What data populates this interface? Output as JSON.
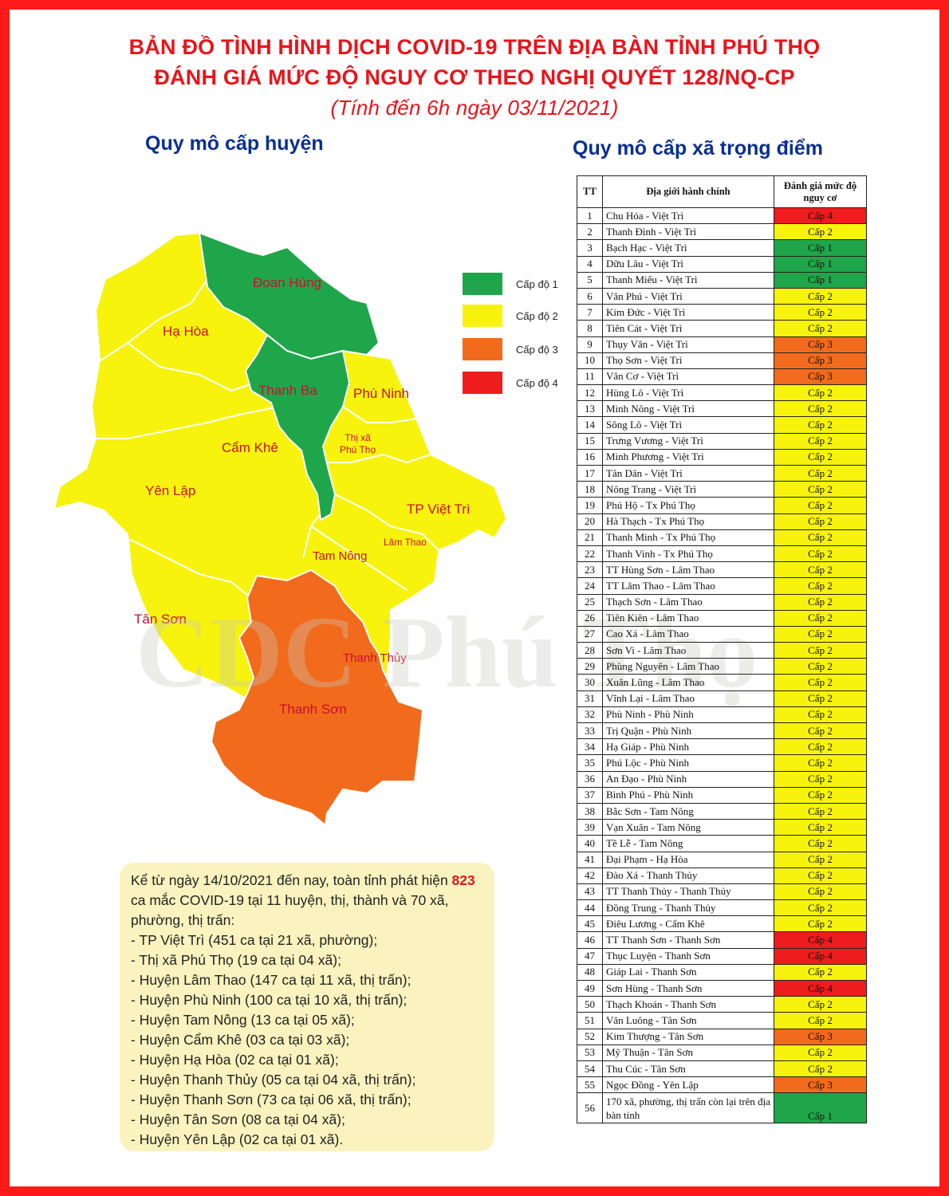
{
  "header": {
    "title_line1": "BẢN ĐỒ TÌNH HÌNH DỊCH COVID-19 TRÊN ĐỊA BÀN TỈNH PHÚ THỌ",
    "title_line2": "ĐÁNH GIÁ MỨC ĐỘ NGUY CƠ THEO NGHỊ QUYẾT 128/NQ-CP",
    "subtitle": "(Tính đến 6h ngày 03/11/2021)"
  },
  "colors": {
    "level1": "#1fa64a",
    "level2": "#f7f30c",
    "level3": "#f26a1b",
    "level4": "#ee1c1c",
    "frame": "#ff1a1a",
    "title": "#e8141b",
    "section_title": "#0a2f8f"
  },
  "map": {
    "section_title": "Quy mô cấp huyện",
    "districts": [
      {
        "name": "Đoan Hùng",
        "level": 1
      },
      {
        "name": "Hạ Hòa",
        "level": 2
      },
      {
        "name": "Thanh Ba",
        "level": 1
      },
      {
        "name": "Phù Ninh",
        "level": 2
      },
      {
        "name": "Cẩm Khê",
        "level": 2
      },
      {
        "name": "Thị xã\nPhú Thọ",
        "level": 2
      },
      {
        "name": "Yên Lập",
        "level": 2
      },
      {
        "name": "TP Việt Trì",
        "level": 2
      },
      {
        "name": "Lâm Thao",
        "level": 2
      },
      {
        "name": "Tam Nông",
        "level": 2
      },
      {
        "name": "Tân Sơn",
        "level": 2
      },
      {
        "name": "Thanh Thủy",
        "level": 2
      },
      {
        "name": "Thanh Sơn",
        "level": 3
      }
    ],
    "watermark": "CDC Phú Thọ",
    "legend": [
      "Cấp độ 1",
      "Cấp độ 2",
      "Cấp độ 3",
      "Cấp độ 4"
    ]
  },
  "summary": {
    "intro_pre": "Kể từ ngày 14/10/2021 đến nay, toàn tỉnh phát hiện ",
    "total": "823",
    "intro_post": " ca mắc COVID-19 tại 11 huyện, thị, thành và 70 xã, phường, thị trấn:",
    "items": [
      "- TP Việt Trì (451 ca tại 21 xã, phường);",
      "- Thị xã Phú Thọ (19 ca tại 04 xã);",
      "- Huyện Lâm Thao (147 ca tại 11 xã, thị trấn);",
      "- Huyện Phù Ninh (100 ca tại 10 xã, thị trấn);",
      "- Huyện Tam Nông (13 ca tại 05 xã);",
      "- Huyện Cẩm Khê (03 ca tại 03 xã);",
      "- Huyện Hạ Hòa (02 ca tại 01 xã);",
      "- Huyện Thanh Thủy (05 ca tại 04 xã, thị trấn);",
      "- Huyện Thanh Sơn (73 ca tại 06 xã, thị trấn);",
      "- Huyện Tân Sơn (08 ca tại 04 xã);",
      "- Huyện Yên Lập (02 ca tại 01 xã)."
    ]
  },
  "table": {
    "section_title": "Quy mô cấp xã trọng điểm",
    "headers": [
      "TT",
      "Địa giới hành chính",
      "Đánh giá mức độ nguy cơ"
    ],
    "rows": [
      [
        "1",
        "Chu Hóa - Việt Trì",
        "Cấp 4"
      ],
      [
        "2",
        "Thanh Đình - Việt Trì",
        "Cấp 2"
      ],
      [
        "3",
        "Bạch Hạc - Việt Trì",
        "Cấp 1"
      ],
      [
        "4",
        "Dữu Lâu - Việt Trì",
        "Cấp 1"
      ],
      [
        "5",
        "Thanh Miếu - Việt Trì",
        "Cấp 1"
      ],
      [
        "6",
        "Vân Phú - Việt Trì",
        "Cấp 2"
      ],
      [
        "7",
        "Kim Đức - Việt Trì",
        "Cấp 2"
      ],
      [
        "8",
        "Tiên Cát - Việt Trì",
        "Cấp 2"
      ],
      [
        "9",
        "Thụy Vân - Việt Trì",
        "Cấp 3"
      ],
      [
        "10",
        "Thọ Sơn - Việt Trì",
        "Cấp 3"
      ],
      [
        "11",
        "Vân Cơ - Việt Trì",
        "Cấp 3"
      ],
      [
        "12",
        "Hùng Lô - Việt Trì",
        "Cấp 2"
      ],
      [
        "13",
        "Minh Nông - Việt Trì",
        "Cấp 2"
      ],
      [
        "14",
        "Sông Lô - Việt Trì",
        "Cấp 2"
      ],
      [
        "15",
        "Trưng Vương - Việt Trì",
        "Cấp 2"
      ],
      [
        "16",
        "Minh Phương - Việt Trì",
        "Cấp 2"
      ],
      [
        "17",
        "Tân Dân - Việt Trì",
        "Cấp 2"
      ],
      [
        "18",
        "Nông Trang - Việt Trì",
        "Cấp 2"
      ],
      [
        "19",
        "Phú Hộ - Tx Phú Thọ",
        "Cấp 2"
      ],
      [
        "20",
        "Hà Thạch - Tx Phú Thọ",
        "Cấp 2"
      ],
      [
        "21",
        "Thanh Minh - Tx Phú Thọ",
        "Cấp 2"
      ],
      [
        "22",
        "Thanh Vinh - Tx Phú Thọ",
        "Cấp 2"
      ],
      [
        "23",
        "TT Hùng Sơn - Lâm Thao",
        "Cấp 2"
      ],
      [
        "24",
        "TT Lâm Thao - Lâm Thao",
        "Cấp 2"
      ],
      [
        "25",
        "Thạch Sơn - Lâm Thao",
        "Cấp 2"
      ],
      [
        "26",
        "Tiên Kiên - Lâm Thao",
        "Cấp 2"
      ],
      [
        "27",
        "Cao Xá - Lâm Thao",
        "Cấp 2"
      ],
      [
        "28",
        "Sơn Vi - Lâm Thao",
        "Cấp 2"
      ],
      [
        "29",
        "Phùng Nguyên - Lâm Thao",
        "Cấp 2"
      ],
      [
        "30",
        "Xuân Lũng - Lâm Thao",
        "Cấp 2"
      ],
      [
        "31",
        "Vĩnh Lại - Lâm Thao",
        "Cấp 2"
      ],
      [
        "32",
        "Phù Ninh - Phù Ninh",
        "Cấp 2"
      ],
      [
        "33",
        "Trị Quận - Phù Ninh",
        "Cấp 2"
      ],
      [
        "34",
        "Hạ Giáp - Phù Ninh",
        "Cấp 2"
      ],
      [
        "35",
        "Phú Lộc - Phù Ninh",
        "Cấp 2"
      ],
      [
        "36",
        "An Đạo - Phù Ninh",
        "Cấp 2"
      ],
      [
        "37",
        "Bình Phú - Phù Ninh",
        "Cấp 2"
      ],
      [
        "38",
        "Bắc Sơn - Tam Nông",
        "Cấp 2"
      ],
      [
        "39",
        "Vạn Xuân - Tam Nông",
        "Cấp 2"
      ],
      [
        "40",
        "Tề Lễ - Tam Nông",
        "Cấp 2"
      ],
      [
        "41",
        "Đại Phạm - Hạ Hòa",
        "Cấp 2"
      ],
      [
        "42",
        "Đào Xá - Thanh Thủy",
        "Cấp 2"
      ],
      [
        "43",
        "TT Thanh Thủy - Thanh Thủy",
        "Cấp 2"
      ],
      [
        "44",
        "Đồng Trung - Thanh Thủy",
        "Cấp 2"
      ],
      [
        "45",
        "Điêu Lương - Cẩm Khê",
        "Cấp 2"
      ],
      [
        "46",
        "TT Thanh Sơn - Thanh Sơn",
        "Cấp 4"
      ],
      [
        "47",
        "Thục Luyện - Thanh Sơn",
        "Cấp 4"
      ],
      [
        "48",
        "Giáp Lai - Thanh Sơn",
        "Cấp 2"
      ],
      [
        "49",
        "Sơn Hùng - Thanh Sơn",
        "Cấp 4"
      ],
      [
        "50",
        "Thạch Khoán - Thanh Sơn",
        "Cấp 2"
      ],
      [
        "51",
        "Văn Luông - Tân Sơn",
        "Cấp 2"
      ],
      [
        "52",
        "Kim Thượng - Tân Sơn",
        "Cấp 3"
      ],
      [
        "53",
        "Mỹ Thuận - Tân Sơn",
        "Cấp 2"
      ],
      [
        "54",
        "Thu Cúc - Tân Sơn",
        "Cấp 2"
      ],
      [
        "55",
        "Ngọc Đồng - Yên Lập",
        "Cấp 3"
      ],
      [
        "56",
        "170 xã, phường, thị trấn còn lại trên địa bàn tỉnh",
        "Cấp 1"
      ]
    ]
  }
}
